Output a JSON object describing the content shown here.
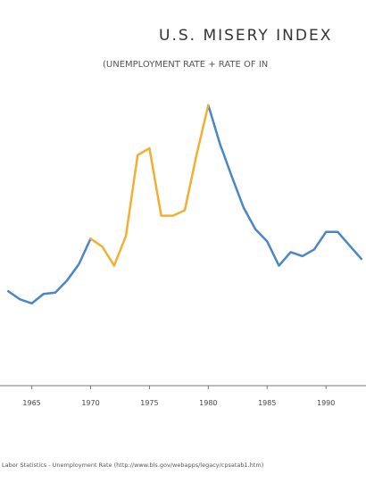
{
  "chart_data": {
    "type": "line",
    "title": "U.S. MISERY INDEX",
    "subtitle": "(UNEMPLOYMENT RATE + RATE OF IN",
    "source": "Labor Statistics - Unemployment Rate (http://www.bls.gov/webapps/legacy/cpsatab1.htm)",
    "x": [
      1963,
      1964,
      1965,
      1966,
      1967,
      1968,
      1969,
      1970,
      1971,
      1972,
      1973,
      1974,
      1975,
      1976,
      1977,
      1978,
      1979,
      1980,
      1981,
      1982,
      1983,
      1984,
      1985,
      1986,
      1987,
      1988,
      1989,
      1990,
      1991,
      1992,
      1993
    ],
    "series": [
      {
        "color": "#4a86c8",
        "values": [
          7.0,
          6.4,
          6.1,
          6.8,
          6.9,
          7.8,
          9.0,
          10.9,
          null,
          null,
          null,
          null,
          null,
          null,
          null,
          null,
          null,
          20.8,
          17.9,
          15.5,
          13.2,
          11.6,
          10.7,
          8.9,
          9.9,
          9.6,
          10.1,
          11.4,
          11.4,
          10.4,
          9.4
        ]
      },
      {
        "color": "#f0b030",
        "values": [
          null,
          null,
          null,
          null,
          null,
          null,
          null,
          10.9,
          10.3,
          8.9,
          11.1,
          17.1,
          17.6,
          12.6,
          12.6,
          13.0,
          17.1,
          20.8,
          null,
          null,
          null,
          null,
          null,
          null,
          null,
          null,
          null,
          null,
          null,
          null,
          null
        ]
      }
    ],
    "xlim": [
      1962.3,
      1993.4
    ],
    "ylim": [
      0,
      28
    ],
    "xticks": [
      1965,
      1970,
      1975,
      1980,
      1985,
      1990
    ]
  }
}
